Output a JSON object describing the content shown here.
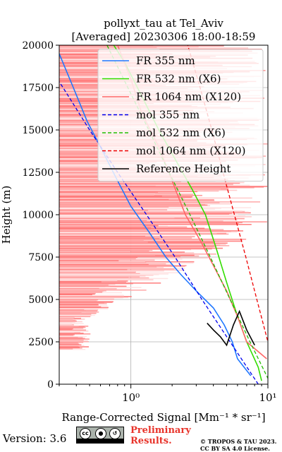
{
  "chart_data": {
    "type": "line",
    "title": "pollyxt_tau at Tel_Aviv",
    "subtitle": "[Averaged] 20230306 18:00-18:59",
    "xlabel": "Range-Corrected Signal [Mm⁻¹ * sr⁻¹]",
    "ylabel": "Height (m)",
    "xscale": "log",
    "xlim": [
      0.3,
      10
    ],
    "ylim": [
      0,
      20000
    ],
    "x_ticks": [
      {
        "value": 1,
        "label": "10⁰"
      },
      {
        "value": 10,
        "label": "10¹"
      }
    ],
    "y_ticks": [
      0,
      2500,
      5000,
      7500,
      10000,
      12500,
      15000,
      17500,
      20000
    ],
    "grid": true,
    "legend_position": "top-right",
    "series": [
      {
        "name": "FR 355 nm",
        "style": "solid",
        "color": "#1f77ff",
        "points": [
          [
            7.5,
            500
          ],
          [
            6.0,
            1500
          ],
          [
            5.5,
            2500
          ],
          [
            4.8,
            3500
          ],
          [
            4.0,
            4500
          ],
          [
            3.0,
            5500
          ],
          [
            2.3,
            6500
          ],
          [
            1.8,
            7500
          ],
          [
            1.35,
            9000
          ],
          [
            1.0,
            10500
          ],
          [
            0.8,
            12000
          ],
          [
            0.6,
            14000
          ],
          [
            0.48,
            15500
          ],
          [
            0.38,
            17500
          ],
          [
            0.3,
            19500
          ]
        ]
      },
      {
        "name": "FR 532 nm (X6)",
        "style": "solid",
        "color": "#33dd00",
        "points": [
          [
            9.0,
            200
          ],
          [
            8.5,
            1000
          ],
          [
            7.0,
            2500
          ],
          [
            6.0,
            4000
          ],
          [
            5.0,
            6000
          ],
          [
            4.2,
            8000
          ],
          [
            3.5,
            10000
          ],
          [
            2.8,
            11500
          ],
          [
            2.2,
            13000
          ],
          [
            1.6,
            15000
          ],
          [
            1.2,
            17000
          ],
          [
            0.9,
            19000
          ],
          [
            0.75,
            20000
          ]
        ]
      },
      {
        "name": "FR 1064 nm (X120)",
        "style": "solid",
        "color": "#ff6666",
        "points": [
          [
            9.8,
            1500
          ],
          [
            7.0,
            2500
          ],
          [
            6.0,
            4000
          ],
          [
            5.0,
            5500
          ],
          [
            4.0,
            7000
          ],
          [
            3.2,
            8500
          ],
          [
            2.5,
            10000
          ],
          [
            2.0,
            12000
          ],
          [
            1.6,
            14000
          ],
          [
            1.2,
            16000
          ],
          [
            1.0,
            18000
          ],
          [
            0.8,
            20000
          ]
        ]
      },
      {
        "name": "mol 355 nm",
        "style": "dashed",
        "color": "#0000ee",
        "points": [
          [
            8.5,
            0
          ],
          [
            5.3,
            2500
          ],
          [
            3.3,
            5000
          ],
          [
            2.1,
            7500
          ],
          [
            1.3,
            10000
          ],
          [
            0.8,
            12500
          ],
          [
            0.5,
            15000
          ],
          [
            0.32,
            17500
          ],
          [
            0.2,
            20000
          ]
        ]
      },
      {
        "name": "mol 532 nm (X6)",
        "style": "dashed",
        "color": "#22bb00",
        "points": [
          [
            10.5,
            0
          ],
          [
            7.4,
            2500
          ],
          [
            5.3,
            5000
          ],
          [
            3.8,
            7500
          ],
          [
            2.7,
            10000
          ],
          [
            1.9,
            12500
          ],
          [
            1.35,
            15000
          ],
          [
            0.95,
            17500
          ],
          [
            0.67,
            20000
          ]
        ]
      },
      {
        "name": "mol 1064 nm (X120)",
        "style": "dashed",
        "color": "#ee0000",
        "points": [
          [
            12.0,
            0
          ],
          [
            10.0,
            2500
          ],
          [
            8.3,
            5000
          ],
          [
            6.9,
            7500
          ],
          [
            5.7,
            10000
          ],
          [
            4.7,
            12500
          ],
          [
            3.9,
            15000
          ],
          [
            3.2,
            17500
          ],
          [
            2.6,
            20000
          ]
        ]
      },
      {
        "name": "Reference Height",
        "style": "solid",
        "color": "#000000",
        "points": [
          [
            3.6,
            3600
          ],
          [
            4.0,
            3200
          ],
          [
            4.5,
            2800
          ],
          [
            5.0,
            2300
          ],
          [
            5.6,
            3500
          ],
          [
            6.2,
            4300
          ],
          [
            7.0,
            3200
          ],
          [
            8.0,
            2300
          ]
        ]
      }
    ]
  },
  "footer": {
    "version": "Version: 3.6",
    "preliminary_line1": "Preliminary",
    "preliminary_line2": "Results.",
    "copyright_line1": "© TROPOS & TAU 2023.",
    "copyright_line2": "CC BY SA 4.0 License.",
    "cc_badge_icon": "cc-by-sa-license-icon"
  }
}
